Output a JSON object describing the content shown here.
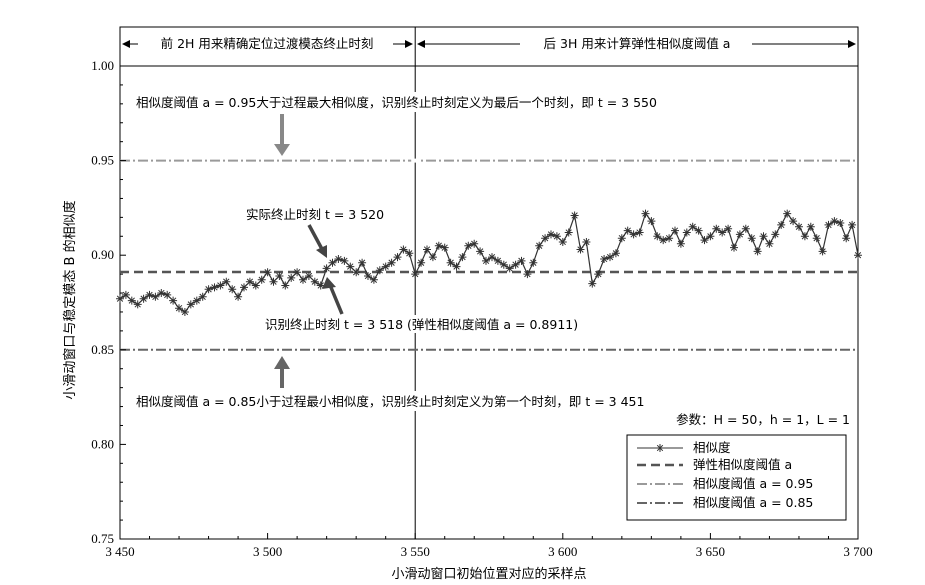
{
  "chart_data": {
    "type": "line",
    "xlabel": "小滑动窗口初始位置对应的采样点",
    "ylabel": "小滑动窗口与稳定模态 B 的相似度",
    "xlim": [
      3450,
      3700
    ],
    "ylim": [
      0.75,
      1.0
    ],
    "x_ticks": [
      3450,
      3500,
      3550,
      3600,
      3650,
      3700
    ],
    "x_tick_labels": [
      "3 450",
      "3 500",
      "3 550",
      "3 600",
      "3 650",
      "3 700"
    ],
    "y_ticks": [
      0.75,
      0.8,
      0.85,
      0.9,
      0.95,
      1.0
    ],
    "y_tick_labels": [
      "0.75",
      "0.80",
      "0.85",
      "0.90",
      "0.95",
      "1.00"
    ],
    "divider_x": 3550,
    "header_left": "前 2H 用来精确定位过渡模态终止时刻",
    "header_right": "后 3H 用来计算弹性相似度阈值 a",
    "thresholds": [
      {
        "name": "弹性相似度阈值 a",
        "value": 0.8911,
        "style": "dashed",
        "color": "#555555"
      },
      {
        "name": "相似度阈值 a = 0.95",
        "value": 0.95,
        "style": "dashdot",
        "color": "#9a9a9a"
      },
      {
        "name": "相似度阈值 a = 0.85",
        "value": 0.85,
        "style": "dashdot",
        "color": "#666666"
      }
    ],
    "series": [
      {
        "name": "相似度",
        "marker": "asterisk",
        "color": "#333333",
        "x": [
          3450,
          3452,
          3454,
          3456,
          3458,
          3460,
          3462,
          3464,
          3466,
          3468,
          3470,
          3472,
          3474,
          3476,
          3478,
          3480,
          3482,
          3484,
          3486,
          3488,
          3490,
          3492,
          3494,
          3496,
          3498,
          3500,
          3502,
          3504,
          3506,
          3508,
          3510,
          3512,
          3514,
          3516,
          3518,
          3520,
          3522,
          3524,
          3526,
          3528,
          3530,
          3532,
          3534,
          3536,
          3538,
          3540,
          3542,
          3544,
          3546,
          3548,
          3550,
          3552,
          3554,
          3556,
          3558,
          3560,
          3562,
          3564,
          3566,
          3568,
          3570,
          3572,
          3574,
          3576,
          3578,
          3580,
          3582,
          3584,
          3586,
          3588,
          3590,
          3592,
          3594,
          3596,
          3598,
          3600,
          3602,
          3604,
          3606,
          3608,
          3610,
          3612,
          3614,
          3616,
          3618,
          3620,
          3622,
          3624,
          3626,
          3628,
          3630,
          3632,
          3634,
          3636,
          3638,
          3640,
          3642,
          3644,
          3646,
          3648,
          3650,
          3652,
          3654,
          3656,
          3658,
          3660,
          3662,
          3664,
          3666,
          3668,
          3670,
          3672,
          3674,
          3676,
          3678,
          3680,
          3682,
          3684,
          3686,
          3688,
          3690,
          3692,
          3694,
          3696,
          3698,
          3700
        ],
        "y": [
          0.877,
          0.879,
          0.876,
          0.874,
          0.877,
          0.879,
          0.878,
          0.88,
          0.879,
          0.876,
          0.872,
          0.87,
          0.874,
          0.876,
          0.878,
          0.882,
          0.883,
          0.884,
          0.886,
          0.882,
          0.878,
          0.883,
          0.886,
          0.884,
          0.887,
          0.891,
          0.886,
          0.889,
          0.884,
          0.888,
          0.891,
          0.887,
          0.889,
          0.886,
          0.884,
          0.893,
          0.896,
          0.898,
          0.897,
          0.894,
          0.891,
          0.896,
          0.889,
          0.887,
          0.892,
          0.894,
          0.896,
          0.899,
          0.903,
          0.901,
          0.89,
          0.896,
          0.903,
          0.899,
          0.905,
          0.904,
          0.896,
          0.894,
          0.899,
          0.905,
          0.906,
          0.902,
          0.897,
          0.899,
          0.897,
          0.895,
          0.893,
          0.895,
          0.897,
          0.89,
          0.896,
          0.905,
          0.909,
          0.911,
          0.91,
          0.907,
          0.912,
          0.921,
          0.903,
          0.907,
          0.885,
          0.89,
          0.898,
          0.899,
          0.901,
          0.909,
          0.913,
          0.911,
          0.912,
          0.922,
          0.918,
          0.91,
          0.908,
          0.909,
          0.913,
          0.906,
          0.912,
          0.915,
          0.913,
          0.908,
          0.91,
          0.914,
          0.912,
          0.914,
          0.904,
          0.911,
          0.914,
          0.909,
          0.902,
          0.91,
          0.906,
          0.911,
          0.916,
          0.922,
          0.918,
          0.915,
          0.91,
          0.915,
          0.909,
          0.902,
          0.916,
          0.918,
          0.917,
          0.909,
          0.916,
          0.9
        ]
      }
    ],
    "annotations": [
      {
        "text": "相似度阈值 a = 0.95大于过程最大相似度，识别终止时刻定义为最后一个时刻，即 t = 3 550"
      },
      {
        "text": "实际终止时刻 t = 3 520"
      },
      {
        "text": "识别终止时刻 t = 3 518 (弹性相似度阈值 a = 0.8911)"
      },
      {
        "text": "相似度阈值 a = 0.85小于过程最小相似度，识别终止时刻定义为第一个时刻，即 t = 3 451"
      },
      {
        "text": "参数：H = 50，h = 1，L = 1"
      }
    ],
    "legend": {
      "placement": "bottom-right",
      "entries": [
        "相似度",
        "弹性相似度阈值 a",
        "相似度阈值 a = 0.95",
        "相似度阈值 a = 0.85"
      ]
    }
  }
}
